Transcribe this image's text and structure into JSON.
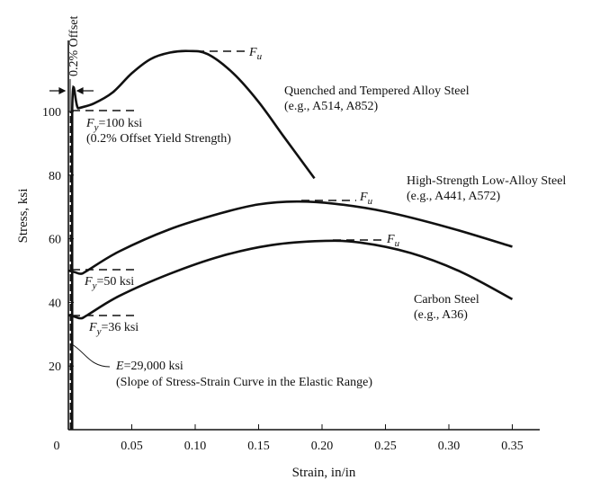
{
  "chart_data": {
    "type": "line",
    "title": "",
    "xlabel": "Strain, in/in",
    "ylabel": "Stress, ksi",
    "xlim": [
      0,
      0.36
    ],
    "ylim": [
      0,
      120
    ],
    "x_ticks": [
      "0",
      "0.05",
      "0.10",
      "0.15",
      "0.20",
      "0.25",
      "0.30",
      "0.35"
    ],
    "x_tick_values": [
      0,
      0.05,
      0.1,
      0.15,
      0.2,
      0.25,
      0.3,
      0.35
    ],
    "y_ticks": [
      "20",
      "40",
      "60",
      "80",
      "100"
    ],
    "y_tick_values": [
      20,
      40,
      60,
      80,
      100
    ],
    "grid": false,
    "legend": "none",
    "series": [
      {
        "name": "Quenched and Tempered Alloy Steel",
        "example": "(e.g., A514, A852)",
        "fy_label": "=100 ksi",
        "fy_note": "(0.2% Offset Yield Strength)",
        "fu_label": "u",
        "points": [
          [
            0.003,
            0
          ],
          [
            0.003,
            100
          ],
          [
            0.008,
            101
          ],
          [
            0.02,
            102.5
          ],
          [
            0.035,
            106
          ],
          [
            0.05,
            112
          ],
          [
            0.065,
            116.5
          ],
          [
            0.08,
            118.5
          ],
          [
            0.095,
            119
          ],
          [
            0.11,
            118
          ],
          [
            0.13,
            112
          ],
          [
            0.15,
            103
          ],
          [
            0.17,
            92
          ],
          [
            0.194,
            79
          ]
        ]
      },
      {
        "name": "High-Strength Low-Alloy Steel",
        "example": "(e.g., A441, A572)",
        "fy_label": "=50 ksi",
        "fu_label": "u",
        "points": [
          [
            0,
            50
          ],
          [
            0.005,
            49.5
          ],
          [
            0.01,
            49
          ],
          [
            0.015,
            50
          ],
          [
            0.04,
            56
          ],
          [
            0.08,
            63
          ],
          [
            0.12,
            68
          ],
          [
            0.15,
            70.8
          ],
          [
            0.18,
            71.7
          ],
          [
            0.21,
            71
          ],
          [
            0.25,
            68.5
          ],
          [
            0.3,
            63.5
          ],
          [
            0.35,
            57.5
          ]
        ]
      },
      {
        "name": "Carbon Steel",
        "example": "(e.g., A36)",
        "fy_label": "=36 ksi",
        "fu_label": "u",
        "points": [
          [
            0,
            36
          ],
          [
            0.005,
            35.5
          ],
          [
            0.01,
            35
          ],
          [
            0.015,
            36
          ],
          [
            0.04,
            42
          ],
          [
            0.08,
            49
          ],
          [
            0.12,
            54.5
          ],
          [
            0.16,
            58
          ],
          [
            0.2,
            59.3
          ],
          [
            0.23,
            58.8
          ],
          [
            0.27,
            55.5
          ],
          [
            0.31,
            49.5
          ],
          [
            0.35,
            41
          ]
        ]
      }
    ],
    "annotations": {
      "offset": "0.2% Offset",
      "fy_symbol": "F",
      "fy_sub": "y",
      "fu_symbol": "F",
      "modulus": "E=29,000 ksi",
      "modulus_note": "(Slope of Stress-Strain Curve in the Elastic Range)"
    }
  }
}
